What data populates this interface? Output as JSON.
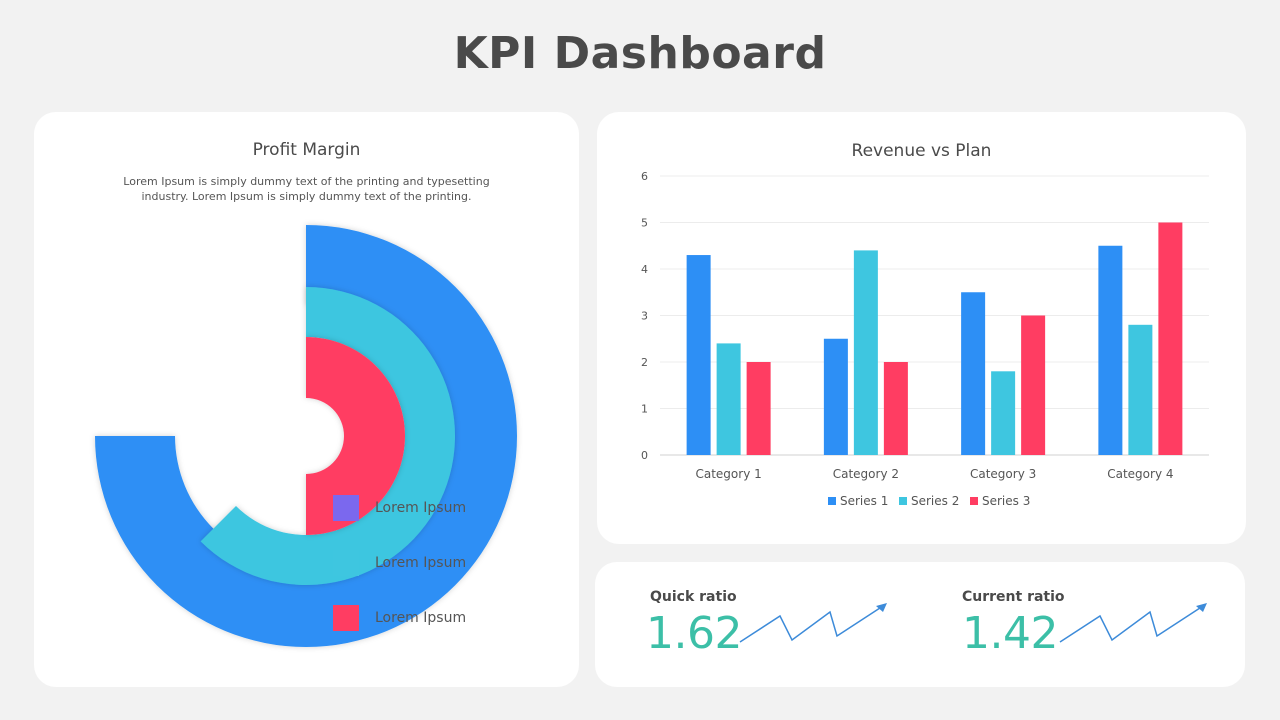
{
  "page": {
    "title": "KPI Dashboard"
  },
  "profit_margin": {
    "title": "Profit Margin",
    "description_line1": "Lorem Ipsum is simply dummy text of the printing and typesetting",
    "description_line2": "industry. Lorem Ipsum is simply dummy text of the printing.",
    "legend": [
      {
        "label": "Lorem Ipsum",
        "color": "#7b68ee"
      },
      {
        "label": "Lorem Ipsum",
        "color": "#3ec6e0"
      },
      {
        "label": "Lorem Ipsum",
        "color": "#ff3d62"
      }
    ]
  },
  "ratios": {
    "quick": {
      "label": "Quick ratio",
      "value": "1.62"
    },
    "current": {
      "label": "Current ratio",
      "value": "1.42"
    },
    "trend_color": "#3d8bd9"
  },
  "chart_data": [
    {
      "type": "pie",
      "style": "concentric-rings",
      "title": "Profit Margin",
      "series": [
        {
          "ring": "outer",
          "color": "#2d8ff5",
          "value_percent": 75
        },
        {
          "ring": "middle",
          "color": "#3ec6e0",
          "value_percent": 62.5
        },
        {
          "ring": "inner",
          "color": "#ff3d62",
          "value_percent": 50
        }
      ]
    },
    {
      "type": "bar",
      "title": "Revenue vs Plan",
      "categories": [
        "Category 1",
        "Category 2",
        "Category 3",
        "Category 4"
      ],
      "series": [
        {
          "name": "Series 1",
          "color": "#2d8ff5",
          "values": [
            4.3,
            2.5,
            3.5,
            4.5
          ]
        },
        {
          "name": "Series 2",
          "color": "#3ec6e0",
          "values": [
            2.4,
            4.4,
            1.8,
            2.8
          ]
        },
        {
          "name": "Series 3",
          "color": "#ff3d62",
          "values": [
            2,
            2,
            3,
            5
          ]
        }
      ],
      "ylim": [
        0,
        6
      ],
      "yticks": [
        0,
        1,
        2,
        3,
        4,
        5,
        6
      ],
      "grid": true,
      "legend_position": "bottom"
    }
  ]
}
